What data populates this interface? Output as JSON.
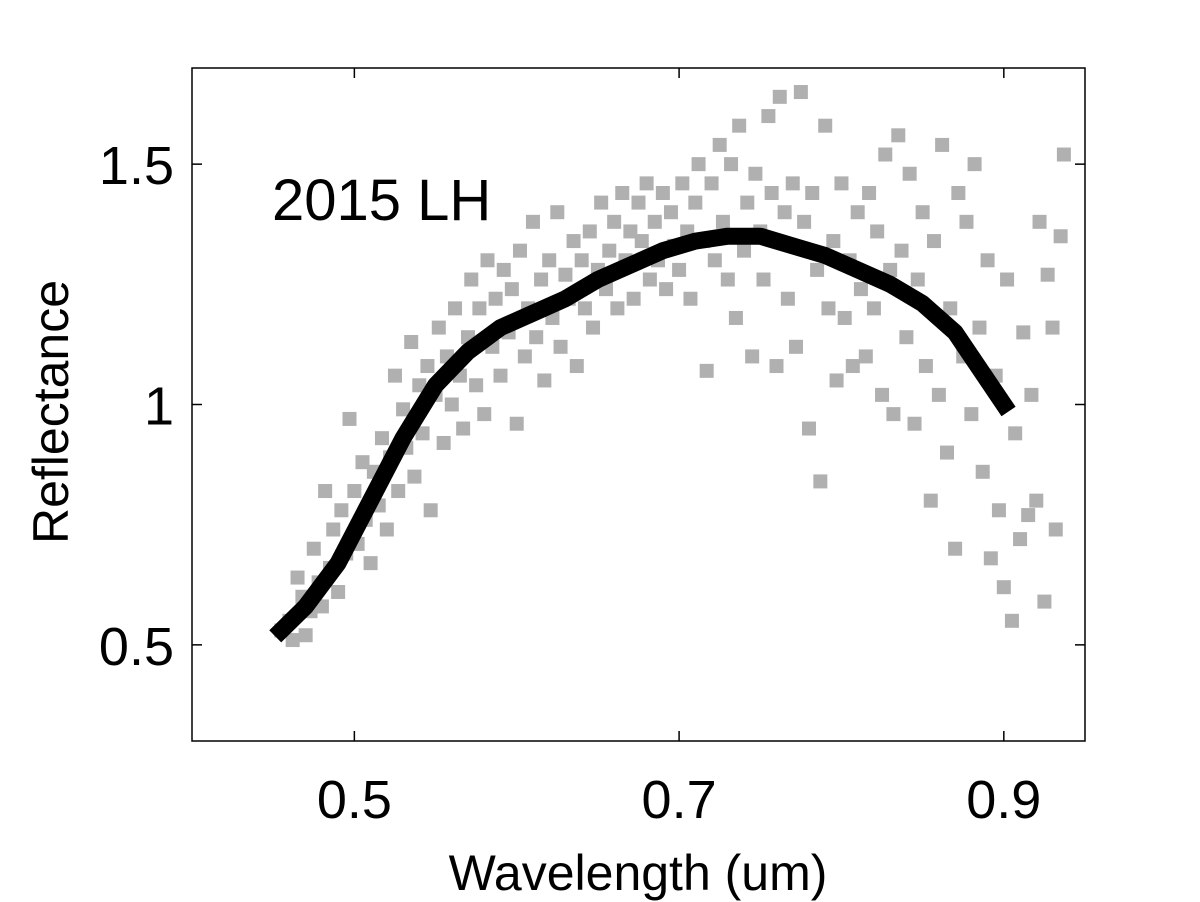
{
  "chart_data": {
    "type": "scatter",
    "annotation": "2015 LH",
    "xlabel": "Wavelength (um)",
    "ylabel": "Reflectance",
    "xlim": [
      0.4,
      0.95
    ],
    "ylim": [
      0.3,
      1.7
    ],
    "xticks": [
      0.5,
      0.7,
      0.9
    ],
    "xtick_labels": [
      "0.5",
      "0.7",
      "0.9"
    ],
    "yticks": [
      0.5,
      1.0,
      1.5
    ],
    "ytick_labels": [
      "0.5",
      "1",
      "1.5"
    ],
    "grid": false,
    "legend": "none",
    "colors": {
      "scatter": "#b0b0b0",
      "fit": "#000000"
    },
    "series": [
      {
        "kind": "scatter",
        "points": [
          [
            0.455,
            0.53
          ],
          [
            0.46,
            0.55
          ],
          [
            0.462,
            0.51
          ],
          [
            0.465,
            0.64
          ],
          [
            0.468,
            0.6
          ],
          [
            0.47,
            0.52
          ],
          [
            0.473,
            0.57
          ],
          [
            0.475,
            0.7
          ],
          [
            0.478,
            0.63
          ],
          [
            0.48,
            0.58
          ],
          [
            0.482,
            0.82
          ],
          [
            0.485,
            0.66
          ],
          [
            0.487,
            0.74
          ],
          [
            0.49,
            0.61
          ],
          [
            0.492,
            0.78
          ],
          [
            0.495,
            0.69
          ],
          [
            0.497,
            0.97
          ],
          [
            0.5,
            0.82
          ],
          [
            0.502,
            0.71
          ],
          [
            0.505,
            0.88
          ],
          [
            0.507,
            0.76
          ],
          [
            0.51,
            0.67
          ],
          [
            0.512,
            0.86
          ],
          [
            0.515,
            0.79
          ],
          [
            0.517,
            0.93
          ],
          [
            0.52,
            0.74
          ],
          [
            0.522,
            0.89
          ],
          [
            0.525,
            1.06
          ],
          [
            0.527,
            0.82
          ],
          [
            0.53,
            0.99
          ],
          [
            0.532,
            0.91
          ],
          [
            0.535,
            1.13
          ],
          [
            0.537,
            0.85
          ],
          [
            0.54,
            1.04
          ],
          [
            0.542,
            0.94
          ],
          [
            0.545,
            1.08
          ],
          [
            0.547,
            0.78
          ],
          [
            0.55,
            1.02
          ],
          [
            0.552,
            1.16
          ],
          [
            0.555,
            0.92
          ],
          [
            0.557,
            1.1
          ],
          [
            0.56,
            1.0
          ],
          [
            0.562,
            1.2
          ],
          [
            0.565,
            1.06
          ],
          [
            0.567,
            0.95
          ],
          [
            0.57,
            1.14
          ],
          [
            0.572,
            1.26
          ],
          [
            0.575,
            1.04
          ],
          [
            0.577,
            1.2
          ],
          [
            0.58,
            0.98
          ],
          [
            0.582,
            1.3
          ],
          [
            0.585,
            1.12
          ],
          [
            0.587,
            1.22
          ],
          [
            0.59,
            1.06
          ],
          [
            0.592,
            1.28
          ],
          [
            0.595,
            1.15
          ],
          [
            0.597,
            1.24
          ],
          [
            0.6,
            0.96
          ],
          [
            0.602,
            1.32
          ],
          [
            0.605,
            1.1
          ],
          [
            0.607,
            1.2
          ],
          [
            0.61,
            1.38
          ],
          [
            0.612,
            1.14
          ],
          [
            0.615,
            1.26
          ],
          [
            0.617,
            1.05
          ],
          [
            0.62,
            1.3
          ],
          [
            0.622,
            1.18
          ],
          [
            0.625,
            1.4
          ],
          [
            0.627,
            1.12
          ],
          [
            0.63,
            1.27
          ],
          [
            0.632,
            1.22
          ],
          [
            0.635,
            1.34
          ],
          [
            0.637,
            1.08
          ],
          [
            0.64,
            1.3
          ],
          [
            0.642,
            1.2
          ],
          [
            0.645,
            1.36
          ],
          [
            0.647,
            1.16
          ],
          [
            0.65,
            1.28
          ],
          [
            0.652,
            1.42
          ],
          [
            0.655,
            1.24
          ],
          [
            0.657,
            1.32
          ],
          [
            0.66,
            1.38
          ],
          [
            0.662,
            1.2
          ],
          [
            0.665,
            1.44
          ],
          [
            0.667,
            1.3
          ],
          [
            0.67,
            1.36
          ],
          [
            0.672,
            1.22
          ],
          [
            0.675,
            1.42
          ],
          [
            0.677,
            1.34
          ],
          [
            0.68,
            1.46
          ],
          [
            0.682,
            1.26
          ],
          [
            0.685,
            1.38
          ],
          [
            0.687,
            1.3
          ],
          [
            0.69,
            1.44
          ],
          [
            0.692,
            1.24
          ],
          [
            0.695,
            1.4
          ],
          [
            0.697,
            1.33
          ],
          [
            0.7,
            1.28
          ],
          [
            0.702,
            1.46
          ],
          [
            0.705,
            1.36
          ],
          [
            0.707,
            1.22
          ],
          [
            0.71,
            1.42
          ],
          [
            0.712,
            1.5
          ],
          [
            0.715,
            1.34
          ],
          [
            0.717,
            1.07
          ],
          [
            0.72,
            1.46
          ],
          [
            0.722,
            1.3
          ],
          [
            0.725,
            1.54
          ],
          [
            0.727,
            1.38
          ],
          [
            0.73,
            1.26
          ],
          [
            0.732,
            1.5
          ],
          [
            0.735,
            1.18
          ],
          [
            0.737,
            1.58
          ],
          [
            0.74,
            1.32
          ],
          [
            0.742,
            1.42
          ],
          [
            0.745,
            1.1
          ],
          [
            0.747,
            1.48
          ],
          [
            0.75,
            1.36
          ],
          [
            0.752,
            1.26
          ],
          [
            0.755,
            1.6
          ],
          [
            0.757,
            1.44
          ],
          [
            0.76,
            1.08
          ],
          [
            0.762,
            1.64
          ],
          [
            0.765,
            1.4
          ],
          [
            0.767,
            1.22
          ],
          [
            0.77,
            1.46
          ],
          [
            0.772,
            1.12
          ],
          [
            0.775,
            1.65
          ],
          [
            0.777,
            1.38
          ],
          [
            0.78,
            0.95
          ],
          [
            0.782,
            1.44
          ],
          [
            0.785,
            1.28
          ],
          [
            0.787,
            0.84
          ],
          [
            0.79,
            1.58
          ],
          [
            0.792,
            1.2
          ],
          [
            0.795,
            1.34
          ],
          [
            0.797,
            1.05
          ],
          [
            0.8,
            1.46
          ],
          [
            0.802,
            1.18
          ],
          [
            0.805,
            1.3
          ],
          [
            0.807,
            1.08
          ],
          [
            0.81,
            1.4
          ],
          [
            0.812,
            1.24
          ],
          [
            0.815,
            1.1
          ],
          [
            0.817,
            1.44
          ],
          [
            0.82,
            1.2
          ],
          [
            0.822,
            1.36
          ],
          [
            0.825,
            1.02
          ],
          [
            0.827,
            1.52
          ],
          [
            0.83,
            1.28
          ],
          [
            0.832,
            0.98
          ],
          [
            0.835,
            1.56
          ],
          [
            0.837,
            1.32
          ],
          [
            0.84,
            1.14
          ],
          [
            0.842,
            1.48
          ],
          [
            0.845,
            0.96
          ],
          [
            0.847,
            1.26
          ],
          [
            0.85,
            1.4
          ],
          [
            0.852,
            1.08
          ],
          [
            0.855,
            0.8
          ],
          [
            0.857,
            1.34
          ],
          [
            0.86,
            1.02
          ],
          [
            0.862,
            1.54
          ],
          [
            0.865,
            0.9
          ],
          [
            0.867,
            1.2
          ],
          [
            0.87,
            0.7
          ],
          [
            0.872,
            1.44
          ],
          [
            0.875,
            1.1
          ],
          [
            0.877,
            1.38
          ],
          [
            0.88,
            0.98
          ],
          [
            0.882,
            1.5
          ],
          [
            0.885,
            1.16
          ],
          [
            0.887,
            0.86
          ],
          [
            0.89,
            1.3
          ],
          [
            0.892,
            0.68
          ],
          [
            0.895,
            1.06
          ],
          [
            0.897,
            0.78
          ],
          [
            0.9,
            0.62
          ],
          [
            0.902,
            1.26
          ],
          [
            0.905,
            0.55
          ],
          [
            0.907,
            0.94
          ],
          [
            0.91,
            0.72
          ],
          [
            0.912,
            1.15
          ],
          [
            0.915,
            0.77
          ],
          [
            0.917,
            1.02
          ],
          [
            0.92,
            0.8
          ],
          [
            0.922,
            1.38
          ],
          [
            0.925,
            0.59
          ],
          [
            0.927,
            1.27
          ],
          [
            0.93,
            1.16
          ],
          [
            0.932,
            0.74
          ],
          [
            0.935,
            1.35
          ],
          [
            0.937,
            1.52
          ]
        ]
      },
      {
        "kind": "line",
        "points": [
          [
            0.455,
            0.53
          ],
          [
            0.47,
            0.58
          ],
          [
            0.49,
            0.67
          ],
          [
            0.51,
            0.8
          ],
          [
            0.53,
            0.93
          ],
          [
            0.55,
            1.04
          ],
          [
            0.57,
            1.11
          ],
          [
            0.59,
            1.16
          ],
          [
            0.61,
            1.19
          ],
          [
            0.63,
            1.22
          ],
          [
            0.65,
            1.26
          ],
          [
            0.67,
            1.29
          ],
          [
            0.69,
            1.32
          ],
          [
            0.71,
            1.34
          ],
          [
            0.73,
            1.35
          ],
          [
            0.75,
            1.35
          ],
          [
            0.77,
            1.33
          ],
          [
            0.79,
            1.31
          ],
          [
            0.81,
            1.28
          ],
          [
            0.83,
            1.25
          ],
          [
            0.85,
            1.21
          ],
          [
            0.87,
            1.15
          ],
          [
            0.88,
            1.1
          ],
          [
            0.89,
            1.05
          ],
          [
            0.9,
            1.0
          ]
        ]
      }
    ]
  }
}
